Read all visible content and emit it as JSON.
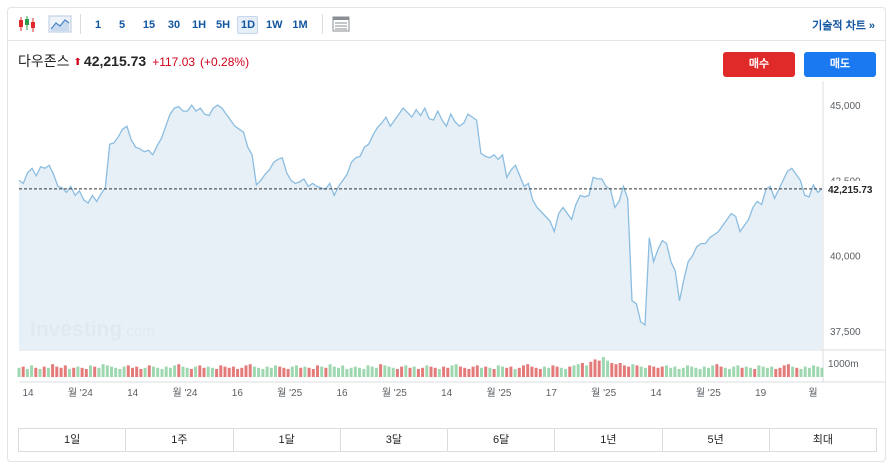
{
  "toolbar": {
    "timeframes": [
      "1",
      "5",
      "15",
      "30",
      "1H",
      "5H",
      "1D",
      "1W",
      "1M"
    ],
    "active_timeframe": "1D",
    "tech_chart_link": "기술적 차트 »"
  },
  "quote": {
    "name": "다우존스",
    "price": "42,215.73",
    "change": "+117.03",
    "change_pct": "(+0.28%)"
  },
  "buttons": {
    "buy": "매수",
    "sell": "매도"
  },
  "watermark": {
    "brand": "Investing",
    "suffix": ".com"
  },
  "volume_label": "1000m",
  "ranges": [
    "1일",
    "1주",
    "1달",
    "3달",
    "6달",
    "1년",
    "5년",
    "최대"
  ],
  "colors": {
    "line": "#8bbde0",
    "area": "#e4edf6",
    "up_volume": "#9fd8b0",
    "down_volume": "#e47b7b",
    "negative": "#d0021b",
    "buy": "#e02929",
    "sell": "#1a78f0",
    "link": "#1256a0"
  },
  "chart_data": {
    "type": "area",
    "y_ticks": [
      "45,000",
      "42,500",
      "40,000",
      "37,500"
    ],
    "x_tick_labels": [
      "14",
      "월 '24",
      "14",
      "월 '24",
      "16",
      "월 '25",
      "16",
      "월 '25",
      "14",
      "월 '25",
      "17",
      "월 '25",
      "14",
      "월 '25",
      "19",
      "월"
    ],
    "last_price_label": "42,215.73",
    "last_price": 42215.73,
    "ylim": [
      36900,
      45800
    ],
    "series": [
      {
        "values": [
          42500,
          42400,
          42750,
          42900,
          42650,
          42950,
          42900,
          43000,
          42700,
          42300,
          42250,
          42100,
          42300,
          42000,
          42150,
          41850,
          41750,
          42000,
          41800,
          42050,
          42250,
          43700,
          43750,
          43950,
          44200,
          44300,
          43850,
          43600,
          43550,
          43450,
          43500,
          43350,
          43650,
          43900,
          44300,
          44700,
          44900,
          44950,
          44800,
          44800,
          45000,
          44800,
          44900,
          44700,
          44650,
          44900,
          45000,
          44900,
          44700,
          44500,
          44300,
          44200,
          44100,
          43600,
          43350,
          42350,
          42500,
          42700,
          42850,
          43100,
          43200,
          43250,
          42750,
          42500,
          42400,
          42450,
          42550,
          42300,
          42400,
          42300,
          42250,
          42200,
          42400,
          42000,
          42300,
          42500,
          42700,
          43100,
          43250,
          43300,
          43600,
          43700,
          44000,
          44250,
          44400,
          44600,
          44300,
          44500,
          44700,
          44900,
          44750,
          44600,
          44850,
          44650,
          44900,
          44550,
          44500,
          44800,
          44500,
          44300,
          44700,
          44450,
          44300,
          44400,
          44700,
          44600,
          44500,
          43400,
          43300,
          43250,
          43350,
          43200,
          43350,
          42600,
          42850,
          43000,
          42650,
          42300,
          42400,
          41850,
          41600,
          41450,
          41300,
          41150,
          40800,
          41400,
          41600,
          41400,
          41200,
          41700,
          42000,
          41950,
          42000,
          42600,
          42550,
          42550,
          42300,
          42200,
          41600,
          41800,
          42300,
          41900,
          38500,
          38400,
          37800,
          37700,
          40600,
          39800,
          40200,
          40500,
          40400,
          39800,
          39500,
          38500,
          39200,
          39800,
          40000,
          40300,
          40400,
          40400,
          40600,
          40700,
          40800,
          41000,
          41200,
          41400,
          41300,
          40800,
          41000,
          41200,
          41600,
          41800,
          41700,
          42200,
          42300,
          41900,
          42200,
          42500,
          42800,
          42900,
          42700,
          42500,
          42000,
          41950,
          42350,
          42100,
          42215.73
        ]
      }
    ],
    "volume": {
      "label": "1000m",
      "values": [
        0.6,
        0.7,
        0.5,
        0.8,
        0.6,
        0.5,
        0.7,
        0.6,
        0.9,
        0.7,
        0.6,
        0.8,
        0.5,
        0.6,
        0.7,
        0.6,
        0.5,
        0.8,
        0.7,
        0.6,
        0.9,
        0.8,
        0.7,
        0.6,
        0.5,
        0.7,
        0.8,
        0.6,
        0.7,
        0.5,
        0.6,
        0.8,
        0.7,
        0.6,
        0.5,
        0.7,
        0.6,
        0.8,
        0.9,
        0.7,
        0.6,
        0.5,
        0.7,
        0.8,
        0.6,
        0.7,
        0.6,
        0.5,
        0.8,
        0.7,
        0.6,
        0.7,
        0.5,
        0.6,
        0.8,
        0.9,
        0.7,
        0.6,
        0.5,
        0.7,
        0.6,
        0.8,
        0.7,
        0.6,
        0.5,
        0.7,
        0.8,
        0.6,
        0.7,
        0.6,
        0.5,
        0.8,
        0.7,
        0.6,
        0.9,
        0.7,
        0.6,
        0.8,
        0.5,
        0.6,
        0.7,
        0.6,
        0.5,
        0.8,
        0.7,
        0.6,
        0.9,
        0.8,
        0.7,
        0.6,
        0.5,
        0.7,
        0.8,
        0.6,
        0.7,
        0.5,
        0.6,
        0.8,
        0.7,
        0.6,
        0.5,
        0.7,
        0.6,
        0.8,
        0.9,
        0.7,
        0.6,
        0.5,
        0.7,
        0.8,
        0.6,
        0.7,
        0.6,
        0.5,
        0.8,
        0.7,
        0.6,
        0.7,
        0.5,
        0.6,
        0.8,
        0.9,
        0.7,
        0.6,
        0.5,
        0.7,
        0.6,
        0.8,
        0.7,
        0.6,
        0.5,
        0.7,
        0.8,
        0.9,
        1.0,
        0.8,
        1.1,
        1.3,
        1.2,
        1.5,
        1.2,
        1.0,
        0.9,
        1.0,
        0.8,
        0.7,
        0.9,
        0.8,
        0.7,
        0.6,
        0.8,
        0.7,
        0.6,
        0.7,
        0.8,
        0.6,
        0.7,
        0.5,
        0.6,
        0.8,
        0.7,
        0.6,
        0.5,
        0.7,
        0.6,
        0.8,
        0.9,
        0.7,
        0.6,
        0.5,
        0.7,
        0.8,
        0.6,
        0.7,
        0.6,
        0.5,
        0.8,
        0.7,
        0.6,
        0.7,
        0.5,
        0.6,
        0.8,
        0.9,
        0.7,
        0.6,
        0.5,
        0.7,
        0.6,
        0.8,
        0.7,
        0.6
      ]
    }
  }
}
